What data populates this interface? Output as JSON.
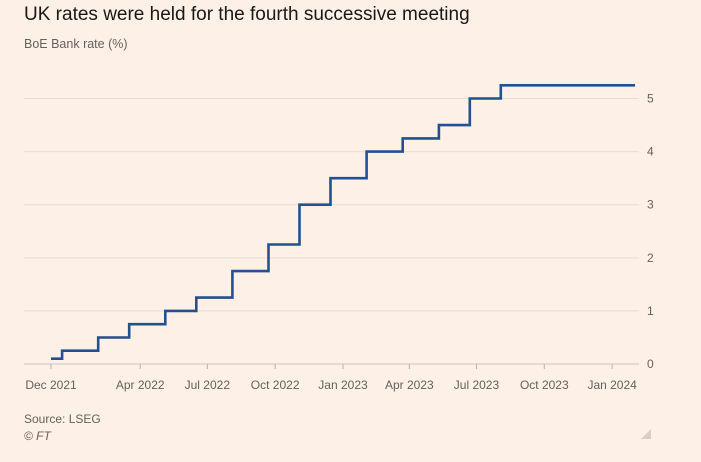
{
  "header": {
    "title": "UK rates were held for the fourth successive meeting",
    "subtitle": "BoE Bank rate (%)"
  },
  "footer": {
    "source": "Source: LSEG",
    "copyright": "© FT"
  },
  "colors": {
    "background": "#fdf0e6",
    "line": "#235092",
    "grid": "#e9ddd2",
    "axis": "#66605c"
  },
  "chart_data": {
    "type": "line",
    "step": true,
    "title": "UK rates were held for the fourth successive meeting",
    "ylabel": "BoE Bank rate (%)",
    "xlim": [
      "2021-12-01",
      "2024-02-01"
    ],
    "ylim": [
      0,
      5.5
    ],
    "yticks": [
      0,
      1,
      2,
      3,
      4,
      5
    ],
    "xticks": [
      {
        "date": "2021-12-01",
        "label": "Dec 2021"
      },
      {
        "date": "2022-04-01",
        "label": "Apr 2022"
      },
      {
        "date": "2022-07-01",
        "label": "Jul 2022"
      },
      {
        "date": "2022-10-01",
        "label": "Oct 2022"
      },
      {
        "date": "2023-01-01",
        "label": "Jan 2023"
      },
      {
        "date": "2023-04-01",
        "label": "Apr 2023"
      },
      {
        "date": "2023-07-01",
        "label": "Jul 2023"
      },
      {
        "date": "2023-10-01",
        "label": "Oct 2023"
      },
      {
        "date": "2024-01-01",
        "label": "Jan 2024"
      }
    ],
    "grid": true,
    "yaxis_position": "right",
    "series": [
      {
        "points": [
          {
            "x": "2021-12-01",
            "y": 0.1
          },
          {
            "x": "2021-12-16",
            "y": 0.25
          },
          {
            "x": "2022-02-03",
            "y": 0.5
          },
          {
            "x": "2022-03-17",
            "y": 0.75
          },
          {
            "x": "2022-05-05",
            "y": 1.0
          },
          {
            "x": "2022-06-16",
            "y": 1.25
          },
          {
            "x": "2022-08-04",
            "y": 1.75
          },
          {
            "x": "2022-09-22",
            "y": 2.25
          },
          {
            "x": "2022-11-03",
            "y": 3.0
          },
          {
            "x": "2022-12-15",
            "y": 3.5
          },
          {
            "x": "2023-02-02",
            "y": 4.0
          },
          {
            "x": "2023-03-23",
            "y": 4.25
          },
          {
            "x": "2023-05-11",
            "y": 4.5
          },
          {
            "x": "2023-06-22",
            "y": 5.0
          },
          {
            "x": "2023-08-03",
            "y": 5.25
          },
          {
            "x": "2024-02-01",
            "y": 5.25
          }
        ]
      }
    ]
  }
}
